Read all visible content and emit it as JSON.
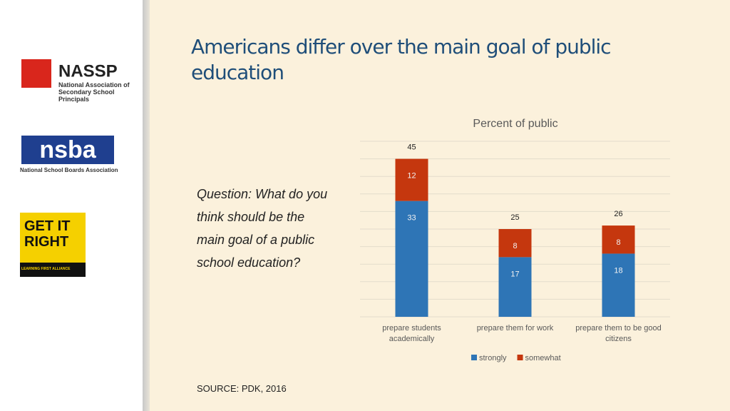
{
  "slide": {
    "title": "Americans differ over the main goal of public education",
    "question": "Question: What do you think should be the main goal of a public school education?",
    "source": "SOURCE: PDK, 2016",
    "logos": [
      {
        "name": "NASSP",
        "caption": "National Association of Secondary School Principals"
      },
      {
        "name": "nsba",
        "caption": "National School Boards Association"
      },
      {
        "name": "GET IT RIGHT",
        "caption": "LEARNING FIRST ALLIANCE"
      }
    ]
  },
  "chart_data": {
    "type": "stacked_bar",
    "title": "Percent of public",
    "categories": [
      "prepare students academically",
      "prepare them for work",
      "prepare them to be good citizens"
    ],
    "series": [
      {
        "name": "strongly",
        "color": "#2e75b6",
        "values": [
          33,
          17,
          18
        ]
      },
      {
        "name": "somewhat",
        "color": "#c5370e",
        "values": [
          12,
          8,
          8
        ]
      }
    ],
    "totals": [
      45,
      25,
      26
    ],
    "ylim": [
      0,
      50
    ],
    "yticks": [
      0,
      5,
      10,
      15,
      20,
      25,
      30,
      35,
      40,
      45,
      50
    ],
    "show_tick_labels": false,
    "grid": true,
    "legend": "bottom"
  }
}
